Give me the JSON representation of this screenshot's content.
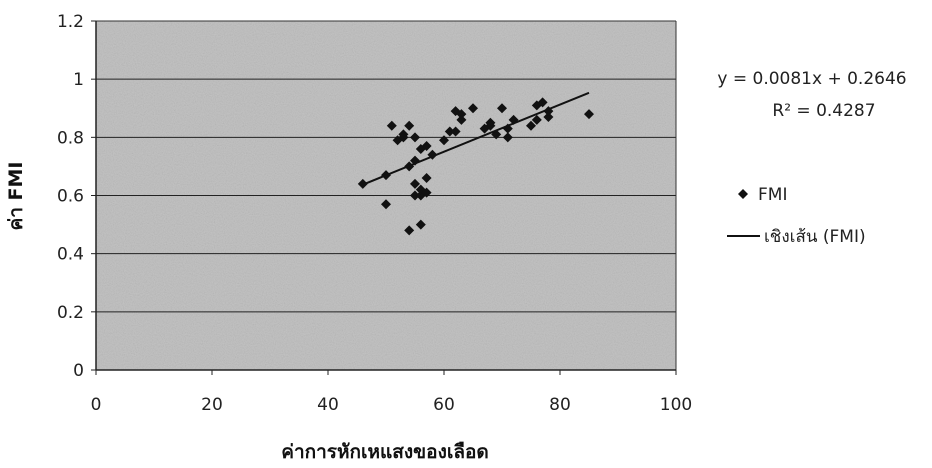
{
  "chart_data": {
    "type": "scatter",
    "title": "",
    "xlabel": "ค่าการหักเหแสงของเลือด",
    "ylabel": "ค่า FMI",
    "xlim": [
      0,
      100
    ],
    "ylim": [
      0,
      1.2
    ],
    "x_ticks": [
      "0",
      "20",
      "40",
      "60",
      "80",
      "100"
    ],
    "y_ticks": [
      "0",
      "0.2",
      "0.4",
      "0.6",
      "0.8",
      "1",
      "1.2"
    ],
    "grid": "horizontal",
    "legend_position": "right",
    "series": [
      {
        "name": "FMI",
        "marker": "diamond",
        "color": "#111111",
        "points": [
          [
            46,
            0.64
          ],
          [
            50,
            0.57
          ],
          [
            50,
            0.67
          ],
          [
            51,
            0.84
          ],
          [
            52,
            0.79
          ],
          [
            53,
            0.81
          ],
          [
            53,
            0.8
          ],
          [
            54,
            0.84
          ],
          [
            54,
            0.7
          ],
          [
            54,
            0.48
          ],
          [
            55,
            0.8
          ],
          [
            55,
            0.72
          ],
          [
            55,
            0.64
          ],
          [
            55,
            0.6
          ],
          [
            56,
            0.5
          ],
          [
            56,
            0.6
          ],
          [
            56,
            0.76
          ],
          [
            56,
            0.62
          ],
          [
            57,
            0.66
          ],
          [
            57,
            0.61
          ],
          [
            57,
            0.77
          ],
          [
            58,
            0.74
          ],
          [
            60,
            0.79
          ],
          [
            61,
            0.82
          ],
          [
            62,
            0.89
          ],
          [
            62,
            0.82
          ],
          [
            63,
            0.86
          ],
          [
            63,
            0.88
          ],
          [
            65,
            0.9
          ],
          [
            67,
            0.83
          ],
          [
            68,
            0.85
          ],
          [
            68,
            0.84
          ],
          [
            69,
            0.81
          ],
          [
            70,
            0.9
          ],
          [
            71,
            0.83
          ],
          [
            71,
            0.8
          ],
          [
            72,
            0.86
          ],
          [
            75,
            0.84
          ],
          [
            76,
            0.91
          ],
          [
            76,
            0.86
          ],
          [
            77,
            0.92
          ],
          [
            78,
            0.87
          ],
          [
            78,
            0.89
          ],
          [
            85,
            0.88
          ]
        ]
      }
    ],
    "trendline": {
      "name": "เชิงเส้น (FMI)",
      "slope": 0.0081,
      "intercept": 0.2646,
      "x_range": [
        46,
        85
      ],
      "equation": "y = 0.0081x + 0.2646",
      "r2": "R² = 0.4287",
      "color": "#111111"
    },
    "plot_background": "#c4c4c4",
    "gridline_color": "#222222"
  }
}
